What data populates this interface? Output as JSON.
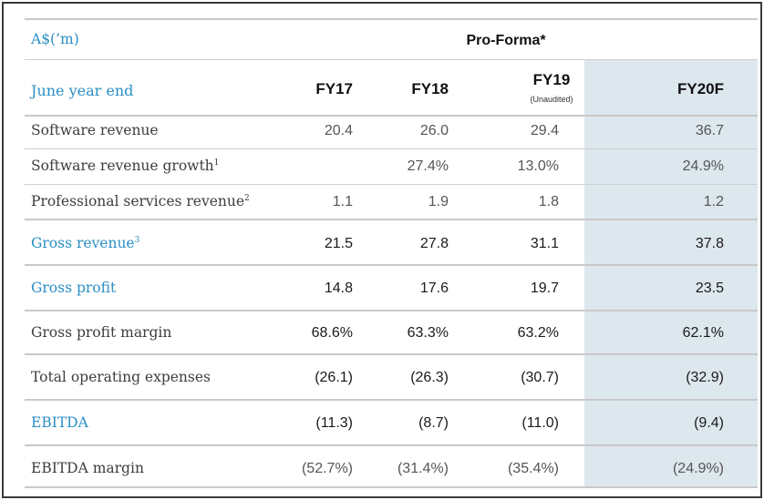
{
  "currency_label": "A$(’m)",
  "pro_forma_label": "Pro-Forma*",
  "header": {
    "label": "June year end",
    "columns": [
      {
        "title": "FY17",
        "note": ""
      },
      {
        "title": "FY18",
        "note": ""
      },
      {
        "title": "FY19",
        "note": "(Unaudited)"
      },
      {
        "title": "FY20F",
        "note": ""
      }
    ]
  },
  "rows": [
    {
      "label": "Software revenue",
      "sup": "",
      "values": [
        "20.4",
        "26.0",
        "29.4",
        "36.7"
      ]
    },
    {
      "label": "Software revenue growth",
      "sup": "1",
      "values": [
        "",
        "27.4%",
        "13.0%",
        "24.9%"
      ]
    },
    {
      "label": "Professional services revenue",
      "sup": "2",
      "values": [
        "1.1",
        "1.9",
        "1.8",
        "1.2"
      ]
    },
    {
      "label": "Gross revenue",
      "sup": "3",
      "values": [
        "21.5",
        "27.8",
        "31.1",
        "37.8"
      ]
    },
    {
      "label": "Gross profit",
      "sup": "",
      "values": [
        "14.8",
        "17.6",
        "19.7",
        "23.5"
      ]
    },
    {
      "label": "Gross profit margin",
      "sup": "",
      "values": [
        "68.6%",
        "63.3%",
        "63.2%",
        "62.1%"
      ]
    },
    {
      "label": "Total operating expenses",
      "sup": "",
      "values": [
        "(26.1)",
        "(26.3)",
        "(30.7)",
        "(32.9)"
      ]
    },
    {
      "label": "EBITDA",
      "sup": "",
      "values": [
        "(11.3)",
        "(8.7)",
        "(11.0)",
        "(9.4)"
      ]
    },
    {
      "label": "EBITDA margin",
      "sup": "",
      "values": [
        "(52.7%)",
        "(31.4%)",
        "(35.4%)",
        "(24.9%)"
      ]
    }
  ],
  "colors": {
    "accent": "#2a8fc4",
    "shade": "#dde7ee"
  }
}
